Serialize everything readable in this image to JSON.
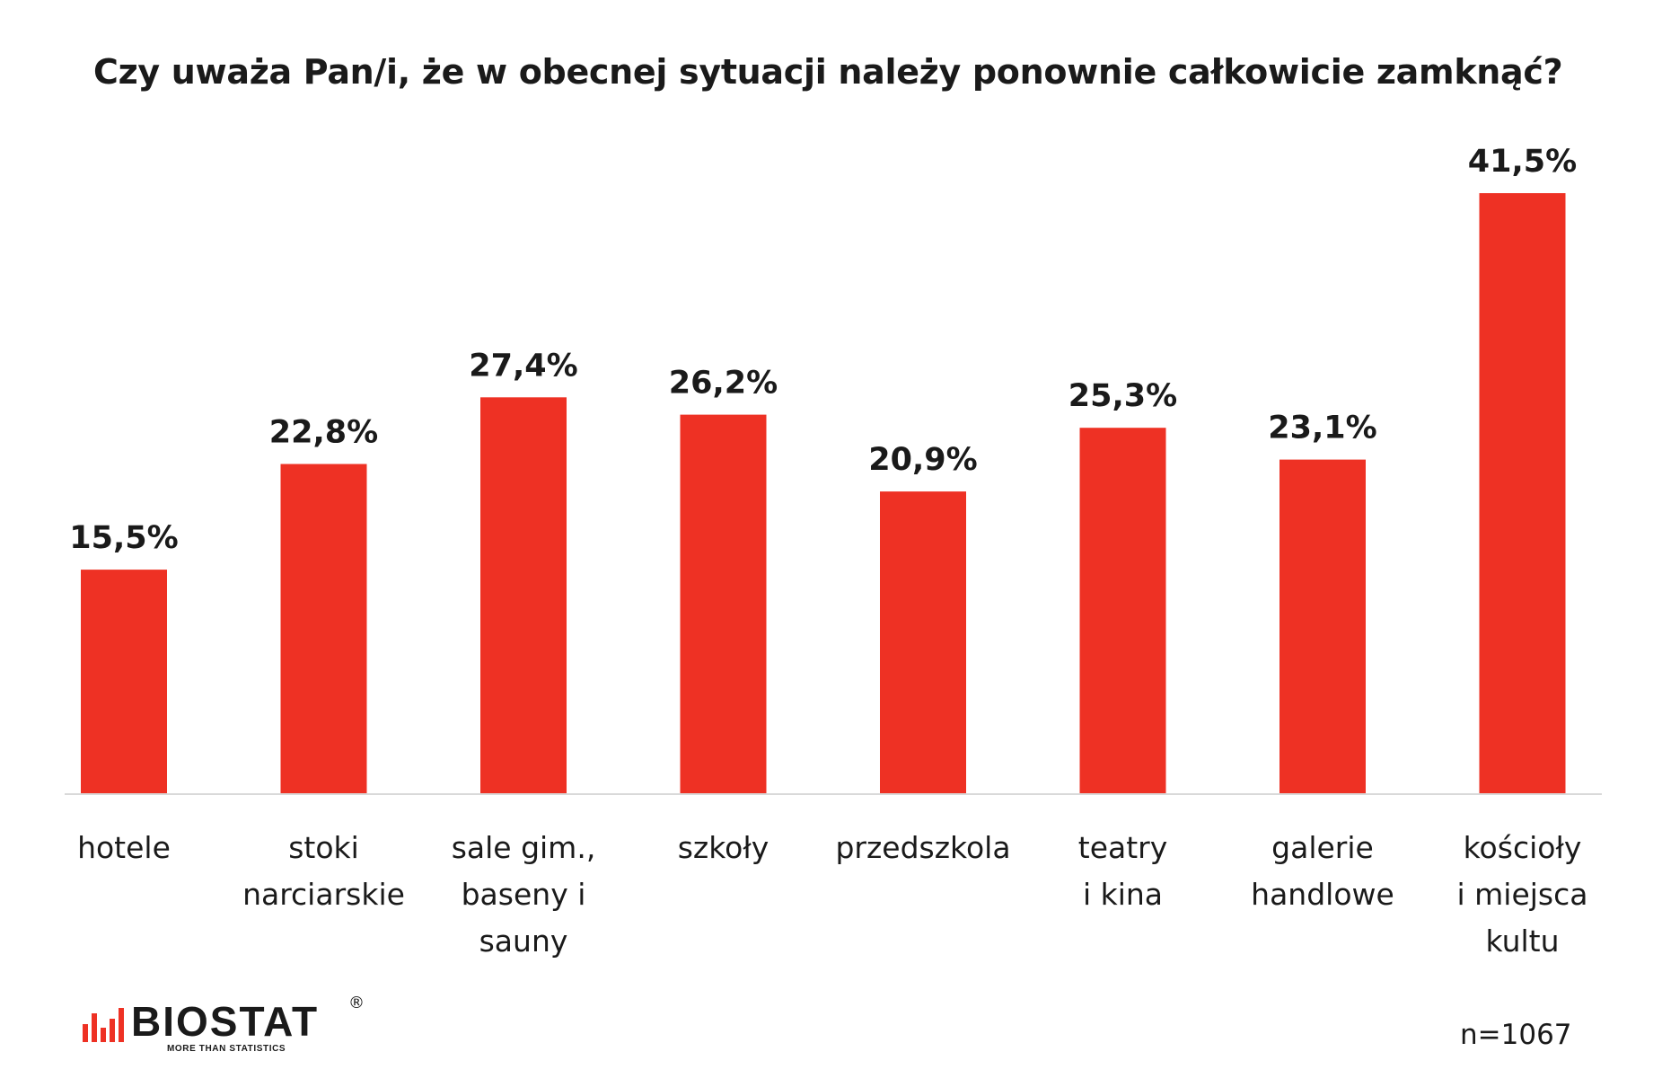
{
  "title": "Czy uważa Pan/i, że w obecnej sytuacji należy ponownie całkowicie zamknąć?",
  "sample_size": "n=1067",
  "logo": {
    "name": "BIOSTAT",
    "tagline": "MORE THAN STATISTICS",
    "registered": "®"
  },
  "colors": {
    "bar": "#ee3124",
    "axis": "#d9d9d9",
    "text": "#1a1a1a"
  },
  "chart_data": {
    "type": "bar",
    "title": "Czy uważa Pan/i, że w obecnej sytuacji należy ponownie całkowicie zamknąć?",
    "categories": [
      "hotele",
      "stoki\nnarciarskie",
      "sale gim.,\nbaseny i\nsauny",
      "szkoły",
      "przedszkola",
      "teatry\ni kina",
      "galerie\nhandlowe",
      "kościoły\ni miejsca\nkultu"
    ],
    "values": [
      15.5,
      22.8,
      27.4,
      26.2,
      20.9,
      25.3,
      23.1,
      41.5
    ],
    "value_labels": [
      "15,5%",
      "22,8%",
      "27,4%",
      "26,2%",
      "20,9%",
      "25,3%",
      "23,1%",
      "41,5%"
    ],
    "unit": "%",
    "xlabel": "",
    "ylabel": "",
    "ylim": [
      0,
      41.5
    ],
    "grid": false,
    "legend": "none"
  }
}
